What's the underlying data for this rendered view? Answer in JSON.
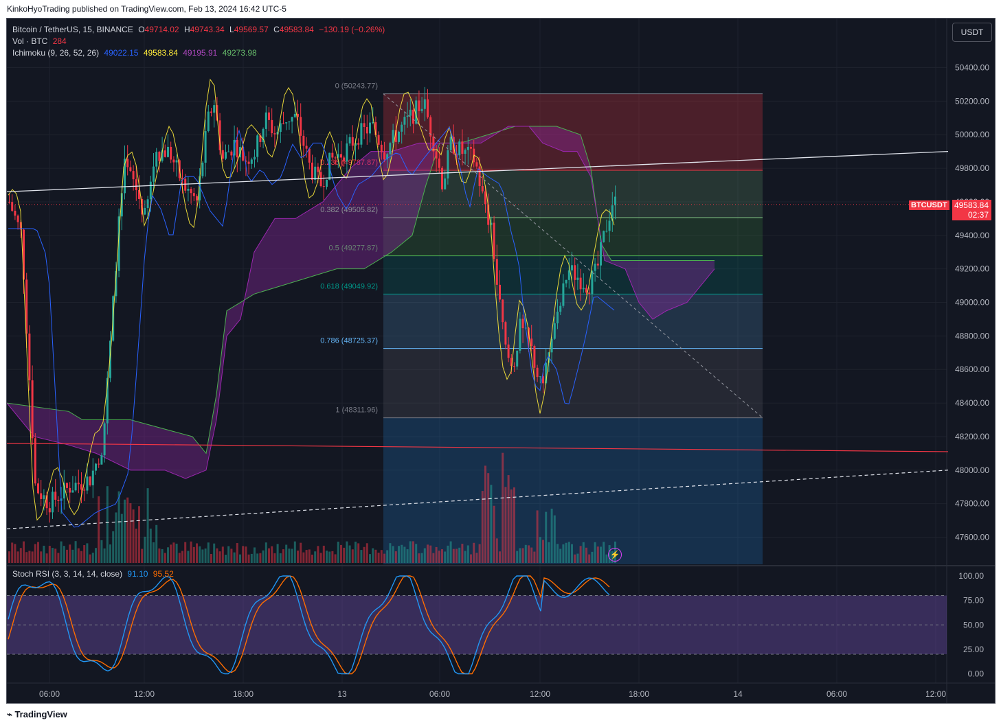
{
  "credit": "KinkoHyoTrading published on TradingView.com, Feb 13, 2024 16:42 UTC-5",
  "footer": {
    "logo": "TradingView"
  },
  "currency_button": "USDT",
  "symbol_tag": "BTCUSDT",
  "last_price": "49583.84",
  "countdown": "02:37",
  "legend": {
    "title": "Bitcoin / TetherUS, 15, BINANCE",
    "ohlc": {
      "o_label": "O",
      "o": "49714.02",
      "h_label": "H",
      "h": "49743.34",
      "l_label": "L",
      "l": "49569.57",
      "c_label": "C",
      "c": "49583.84",
      "chg": "−130.19 (−0.26%)"
    },
    "vol_label": "Vol · BTC",
    "vol_value": "284",
    "ichimoku_label": "Ichimoku (9, 26, 52, 26)",
    "ichimoku_values": [
      "49022.15",
      "49583.84",
      "49195.91",
      "49273.98"
    ],
    "stoch_label": "Stoch RSI (3, 3, 14, 14, close)",
    "stoch_values": [
      "91.10",
      "95.52"
    ]
  },
  "colors": {
    "up": "#26a69a",
    "down": "#f23645",
    "background": "#131722",
    "tenkan": "#2962ff",
    "kijun": "#ffeb3b",
    "lead_b": "#9c27b0",
    "lag": "#4caf50",
    "stoch_k": "#2196f3",
    "stoch_d": "#ff6d00"
  },
  "chart_data": {
    "type": "candlestick",
    "symbol": "BTCUSDT",
    "timeframe": "15",
    "price_axis": {
      "ticks": [
        "50400.00",
        "50200.00",
        "50000.00",
        "49800.00",
        "49600.00",
        "49400.00",
        "49200.00",
        "49000.00",
        "48800.00",
        "48600.00",
        "48400.00",
        "48200.00",
        "48000.00",
        "47800.00",
        "47600.00"
      ],
      "range": [
        47450,
        50600
      ]
    },
    "time_axis": {
      "ticks": [
        "06:00",
        "12:00",
        "18:00",
        "13",
        "06:00",
        "12:00",
        "18:00",
        "14",
        "06:00",
        "12:00"
      ]
    },
    "fibonacci": [
      {
        "label": "0 (50243.77)",
        "price": 50243.77,
        "color": "#787b86"
      },
      {
        "label": "0.236 (49787.87)",
        "price": 49787.87,
        "color": "#f23645"
      },
      {
        "label": "0.382 (49505.82)",
        "price": 49505.82,
        "color": "#81c784"
      },
      {
        "label": "0.5 (49277.87)",
        "price": 49277.87,
        "color": "#4caf50"
      },
      {
        "label": "0.618 (49049.92)",
        "price": 49049.92,
        "color": "#009688"
      },
      {
        "label": "0.786 (48725.37)",
        "price": 48725.37,
        "color": "#64b5f6"
      },
      {
        "label": "1 (48311.96)",
        "price": 48311.96,
        "color": "#787b86"
      }
    ],
    "stoch_axis": {
      "ticks": [
        "100.00",
        "75.00",
        "50.00",
        "25.00",
        "0.00"
      ],
      "range": [
        -5,
        105
      ]
    }
  }
}
